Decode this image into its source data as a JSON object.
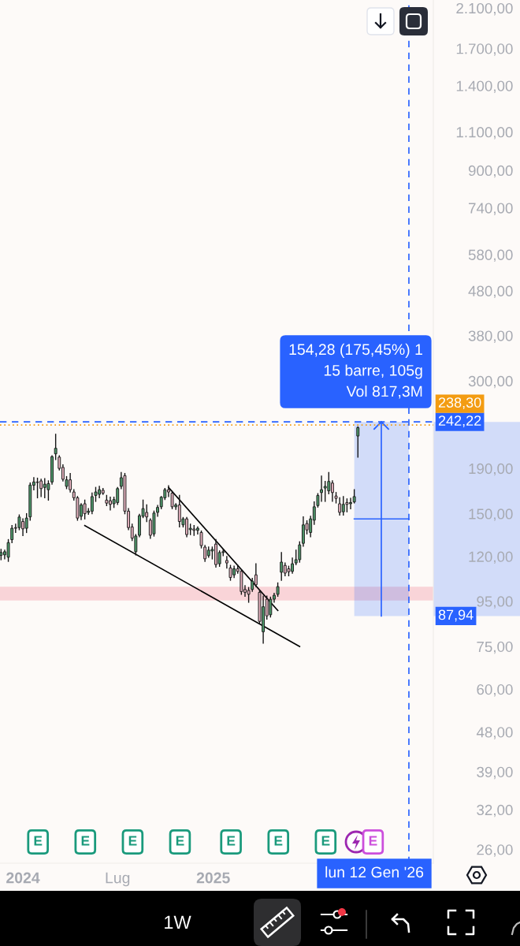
{
  "chart_data": {
    "type": "candlestick",
    "log": true,
    "xlim": [
      "2023-11-18",
      "2026-02-28"
    ],
    "ylim": [
      24.2,
      2190
    ],
    "xticks": [
      {
        "value": "2024-01-01",
        "label": "2024"
      },
      {
        "value": "2024-07-01",
        "label": "Lug"
      },
      {
        "value": "2025-01-01",
        "label": "2025"
      }
    ],
    "yticks": [
      {
        "value": 2100,
        "label": "2.100,00"
      },
      {
        "value": 1700,
        "label": "1.700,00"
      },
      {
        "value": 1400,
        "label": "1.400,00"
      },
      {
        "value": 1100,
        "label": "1.100,00"
      },
      {
        "value": 900,
        "label": "900,00"
      },
      {
        "value": 740,
        "label": "740,00"
      },
      {
        "value": 580,
        "label": "580,00"
      },
      {
        "value": 480,
        "label": "480,00"
      },
      {
        "value": 380,
        "label": "380,00"
      },
      {
        "value": 300,
        "label": "300,00"
      },
      {
        "value": 190,
        "label": "190,00"
      },
      {
        "value": 150,
        "label": "150,00"
      },
      {
        "value": 120,
        "label": "120,00"
      },
      {
        "value": 95,
        "label": "95,00"
      },
      {
        "value": 75,
        "label": "75,00"
      },
      {
        "value": 60,
        "label": "60,00"
      },
      {
        "value": 48,
        "label": "48,00"
      },
      {
        "value": 39,
        "label": "39,00"
      },
      {
        "value": 32,
        "label": "32,00"
      },
      {
        "value": 26,
        "label": "26,00"
      }
    ],
    "series": [
      {
        "x": [
          "2023-11-20",
          "2023-11-27",
          "2023-12-04",
          "2023-12-11",
          "2023-12-18",
          "2023-12-25",
          "2024-01-01",
          "2024-01-08",
          "2024-01-15",
          "2024-01-22",
          "2024-01-29",
          "2024-02-05",
          "2024-02-12",
          "2024-02-19",
          "2024-02-26",
          "2024-03-04",
          "2024-03-11",
          "2024-03-18",
          "2024-03-25",
          "2024-04-01",
          "2024-04-08",
          "2024-04-15",
          "2024-04-22",
          "2024-04-29",
          "2024-05-06",
          "2024-05-13",
          "2024-05-20",
          "2024-05-27",
          "2024-06-03",
          "2024-06-10",
          "2024-06-17",
          "2024-06-24",
          "2024-07-01",
          "2024-07-08",
          "2024-07-15",
          "2024-07-22",
          "2024-07-29",
          "2024-08-05",
          "2024-08-12",
          "2024-08-19",
          "2024-08-26",
          "2024-09-02",
          "2024-09-09",
          "2024-09-16",
          "2024-09-23",
          "2024-09-30",
          "2024-10-07",
          "2024-10-14",
          "2024-10-21",
          "2024-10-28",
          "2024-11-04",
          "2024-11-11",
          "2024-11-18",
          "2024-11-25",
          "2024-12-02",
          "2024-12-09",
          "2024-12-16",
          "2024-12-23",
          "2024-12-30",
          "2025-01-06",
          "2025-01-13",
          "2025-01-20",
          "2025-01-27",
          "2025-02-03",
          "2025-02-10",
          "2025-02-17",
          "2025-02-24",
          "2025-03-03",
          "2025-03-10",
          "2025-03-17",
          "2025-03-24",
          "2025-03-31",
          "2025-04-07",
          "2025-04-14",
          "2025-04-21",
          "2025-04-28",
          "2025-05-05",
          "2025-05-12",
          "2025-05-19",
          "2025-05-26",
          "2025-06-02",
          "2025-06-09",
          "2025-06-16",
          "2025-06-23",
          "2025-06-30",
          "2025-07-07",
          "2025-07-14",
          "2025-07-21",
          "2025-07-28",
          "2025-08-04",
          "2025-08-11",
          "2025-08-18",
          "2025-08-25",
          "2025-09-01",
          "2025-09-08",
          "2025-09-15",
          "2025-09-22",
          "2025-09-29",
          "2025-10-06"
        ],
        "ohlc": [
          [
            120.7,
            124.5,
            118,
            122.5
          ],
          [
            121,
            124,
            118.5,
            123
          ],
          [
            119.5,
            131,
            117,
            129
          ],
          [
            131,
            141,
            129,
            139
          ],
          [
            139.5,
            142,
            136,
            139
          ],
          [
            139.5,
            149,
            138,
            147.4
          ],
          [
            144,
            146,
            133.8,
            138.6
          ],
          [
            139,
            150,
            136,
            146.6
          ],
          [
            147.5,
            176,
            145,
            174.2
          ],
          [
            174,
            181,
            170,
            177
          ],
          [
            177,
            180.5,
            163,
            176.5
          ],
          [
            178,
            179.5,
            164,
            171
          ],
          [
            172,
            180,
            163,
            175
          ],
          [
            170,
            178,
            161,
            175.5
          ],
          [
            177,
            203,
            175,
            202
          ],
          [
            205,
            227,
            199,
            211
          ],
          [
            201.5,
            203,
            188.5,
            190
          ],
          [
            191,
            193.5,
            178,
            179.5
          ],
          [
            173,
            182,
            171,
            179
          ],
          [
            179,
            185,
            168,
            170
          ],
          [
            168,
            170,
            161,
            163
          ],
          [
            163,
            164,
            145,
            146.6
          ],
          [
            148,
            158,
            145.5,
            157
          ],
          [
            158,
            161,
            146,
            150
          ],
          [
            151,
            154,
            149.5,
            152
          ],
          [
            152,
            167,
            150,
            164
          ],
          [
            165,
            172,
            160,
            168
          ],
          [
            166,
            173,
            163,
            170
          ],
          [
            169.5,
            171,
            166,
            167
          ],
          [
            161,
            165,
            156.5,
            158.5
          ],
          [
            160.5,
            163.5,
            153,
            157.5
          ],
          [
            158,
            163.5,
            155,
            161.5
          ],
          [
            159,
            172,
            157.5,
            171
          ],
          [
            173,
            186,
            171,
            181
          ],
          [
            183,
            185,
            150,
            152
          ],
          [
            152,
            154,
            138,
            139.5
          ],
          [
            140,
            142,
            130.5,
            132
          ],
          [
            123,
            134.5,
            121,
            133.5
          ],
          [
            134,
            149.5,
            133,
            148.5
          ],
          [
            148,
            161,
            147,
            154
          ],
          [
            151,
            157,
            144,
            147.5
          ],
          [
            145,
            146,
            132,
            134
          ],
          [
            135,
            152,
            133.5,
            150.5
          ],
          [
            151,
            156.5,
            148,
            155
          ],
          [
            155.5,
            164,
            154,
            163.5
          ],
          [
            163,
            171,
            161.5,
            170
          ],
          [
            170,
            173.5,
            164,
            168
          ],
          [
            167,
            168.5,
            154,
            155.5
          ],
          [
            155.5,
            158,
            153.5,
            157
          ],
          [
            157,
            165,
            140,
            144
          ],
          [
            141.5,
            147,
            140,
            146
          ],
          [
            146,
            147,
            133,
            134.5
          ],
          [
            138,
            142,
            134.5,
            139
          ],
          [
            138.5,
            141,
            134,
            137.5
          ],
          [
            137.5,
            140,
            135,
            139
          ],
          [
            136,
            137,
            125.5,
            127
          ],
          [
            126,
            127,
            117,
            118.5
          ],
          [
            120.5,
            126,
            119.5,
            124
          ],
          [
            123.5,
            126,
            118.5,
            124.5
          ],
          [
            128,
            131,
            113.5,
            115
          ],
          [
            115.5,
            123.5,
            114,
            122.5
          ],
          [
            122.5,
            124.5,
            120.5,
            123
          ],
          [
            117.5,
            120,
            113,
            116
          ],
          [
            113,
            114.5,
            106,
            107.5
          ],
          [
            109,
            114,
            107.5,
            112.5
          ],
          [
            112.5,
            114.5,
            110,
            111
          ],
          [
            111,
            112,
            98.5,
            99.9
          ],
          [
            101,
            103,
            97.5,
            99.5
          ],
          [
            100.5,
            102,
            94.5,
            98.5
          ],
          [
            101,
            107,
            100,
            105.5
          ],
          [
            109,
            115.5,
            102.5,
            103.5
          ],
          [
            99.5,
            100.5,
            84.5,
            85.5
          ],
          [
            81,
            97.5,
            76.3,
            92.3
          ],
          [
            96,
            97.5,
            86.5,
            88
          ],
          [
            88.5,
            97,
            87.5,
            96
          ],
          [
            96,
            99,
            94.5,
            98
          ],
          [
            98.5,
            104.5,
            97.5,
            102.5
          ],
          [
            110.5,
            122.5,
            106,
            116.5
          ],
          [
            114.5,
            116,
            108.5,
            110
          ],
          [
            112.5,
            114,
            108.5,
            110.8
          ],
          [
            111,
            119,
            110,
            115.5
          ],
          [
            116,
            124,
            115,
            118
          ],
          [
            118,
            129.5,
            116.5,
            127.5
          ],
          [
            128.5,
            147.5,
            126.6,
            141.5
          ],
          [
            142.5,
            144.5,
            135,
            137.8
          ],
          [
            136,
            148,
            133,
            146
          ],
          [
            145,
            159.5,
            142,
            155.5
          ],
          [
            156.5,
            166.5,
            155.3,
            165
          ],
          [
            167.5,
            182.5,
            160,
            170
          ],
          [
            171.5,
            177.5,
            160,
            173
          ],
          [
            169,
            186,
            166.5,
            177.5
          ],
          [
            176,
            178,
            160,
            167.5
          ],
          [
            164.5,
            167.5,
            158.7,
            162.5
          ],
          [
            158,
            163,
            149,
            151
          ],
          [
            151.5,
            164,
            149,
            157.5
          ],
          [
            159,
            162,
            151.5,
            157.5
          ],
          [
            158,
            162.5,
            154,
            159
          ],
          [
            159.5,
            170,
            158.7,
            164
          ],
          [
            225,
            236,
            201.5,
            235
          ]
        ],
        "colors": [
          "#4f9b6c",
          "#4f9b6c",
          "#4f9b6c",
          "#4f9b6c",
          "#e8b4c1",
          "#4f9b6c",
          "#e8b4c1",
          "#4f9b6c",
          "#4f9b6c",
          "#4f9b6c",
          "#e8b4c1",
          "#e8b4c1",
          "#4f9b6c",
          "#4f9b6c",
          "#4f9b6c",
          "#4f9b6c",
          "#e8b4c1",
          "#e8b4c1",
          "#4f9b6c",
          "#e8b4c1",
          "#e8b4c1",
          "#e8b4c1",
          "#4f9b6c",
          "#e8b4c1",
          "#4f9b6c",
          "#4f9b6c",
          "#4f9b6c",
          "#4f9b6c",
          "#e8b4c1",
          "#e8b4c1",
          "#e8b4c1",
          "#4f9b6c",
          "#4f9b6c",
          "#4f9b6c",
          "#e8b4c1",
          "#e8b4c1",
          "#e8b4c1",
          "#4f9b6c",
          "#4f9b6c",
          "#4f9b6c",
          "#e8b4c1",
          "#e8b4c1",
          "#4f9b6c",
          "#4f9b6c",
          "#4f9b6c",
          "#4f9b6c",
          "#e8b4c1",
          "#e8b4c1",
          "#4f9b6c",
          "#e8b4c1",
          "#4f9b6c",
          "#e8b4c1",
          "#4f9b6c",
          "#e8b4c1",
          "#4f9b6c",
          "#e8b4c1",
          "#e8b4c1",
          "#4f9b6c",
          "#4f9b6c",
          "#e8b4c1",
          "#4f9b6c",
          "#4f9b6c",
          "#e8b4c1",
          "#e8b4c1",
          "#4f9b6c",
          "#e8b4c1",
          "#e8b4c1",
          "#e8b4c1",
          "#e8b4c1",
          "#4f9b6c",
          "#e8b4c1",
          "#e8b4c1",
          "#4f9b6c",
          "#e8b4c1",
          "#4f9b6c",
          "#4f9b6c",
          "#4f9b6c",
          "#4f9b6c",
          "#e8b4c1",
          "#e8b4c1",
          "#4f9b6c",
          "#4f9b6c",
          "#4f9b6c",
          "#4f9b6c",
          "#e8b4c1",
          "#4f9b6c",
          "#4f9b6c",
          "#4f9b6c",
          "#4f9b6c",
          "#4f9b6c",
          "#4f9b6c",
          "#e8b4c1",
          "#e8b4c1",
          "#e8b4c1",
          "#4f9b6c",
          "#e8b4c1",
          "#4f9b6c",
          "#4f9b6c",
          "#4f9b6c"
        ]
      },
      {
        "type": "line",
        "x": [
          "2024-04-29",
          "2025-06-16"
        ],
        "values": [
          141,
          75
        ],
        "color": "#000000"
      },
      {
        "type": "line",
        "x": [
          "2024-10-07",
          "2025-05-05"
        ],
        "values": [
          172,
          90.5
        ],
        "color": "#000000"
      },
      {
        "type": "line",
        "x": [
          "2025-09-29",
          "2026-01-12"
        ],
        "values": [
          145.95,
          145.95
        ],
        "lower": [
          87.94,
          87.94
        ],
        "upper": [
          242.22,
          242.22
        ],
        "color": "#2962ff"
      },
      {
        "type": "line",
        "x": [
          "2025-11-20",
          "2025-11-20"
        ],
        "values": [
          87.94,
          242.22
        ],
        "color": "#2962ff"
      }
    ],
    "bands": [
      {
        "axis": "y",
        "from": 95.3,
        "to": 102.5,
        "color": "#f9d4d8"
      }
    ],
    "ref_lines": [
      {
        "axis": "y",
        "value": 242.22,
        "label": "242,22",
        "color": "#2962ff",
        "line_style": "dashed"
      },
      {
        "axis": "y",
        "value": 238.3,
        "label": "238,30",
        "color": "#f39c12",
        "line_style": "dotted"
      },
      {
        "axis": "x",
        "value": "2026-01-12",
        "label": "lun 12 Gen '26",
        "color": "#2962ff",
        "line_style": "dashed"
      }
    ],
    "annotations": [
      {
        "text": "154,28 (175,45%) 1\n15 barre, 105g\nVol 817,3M",
        "x": "2025-11-20",
        "y": 242.22
      },
      "87,94",
      {
        "text": "E",
        "x": "2024-01-30"
      },
      {
        "text": "E",
        "x": "2024-04-30"
      },
      {
        "text": "E",
        "x": "2024-07-30"
      },
      {
        "text": "E",
        "x": "2024-10-29"
      },
      {
        "text": "E",
        "x": "2025-02-04"
      },
      {
        "text": "E",
        "x": "2025-05-06"
      },
      {
        "text": "E",
        "x": "2025-08-05"
      },
      {
        "text": "E",
        "x": "2025-11-04"
      },
      "1W"
    ]
  }
}
